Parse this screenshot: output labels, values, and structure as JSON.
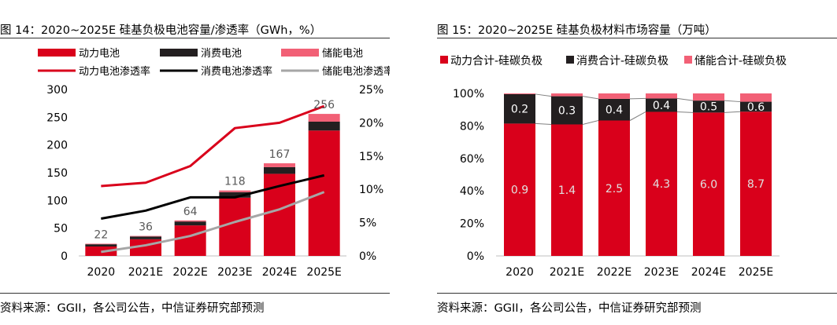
{
  "colors": {
    "power": "#d9001b",
    "consumer": "#231f20",
    "storage": "#f26076",
    "power_line": "#d9001b",
    "consumer_line": "#000000",
    "storage_line": "#a6a6a6",
    "connector": "#808080"
  },
  "left": {
    "title": "图 14：2020~2025E 硅基负极电池容量/渗透率（GWh，%）",
    "source": "资料来源：GGII，各公司公告，中信证券研究部预测"
  },
  "right": {
    "title": "图 15：2020~2025E 硅基负极材料市场容量（万吨）",
    "source": "资料来源：GGII，各公司公告，中信证券研究部预测"
  },
  "chart_data": [
    {
      "type": "bar",
      "stacked": true,
      "title": "2020~2025E 硅基负极电池容量/渗透率（GWh，%）",
      "categories": [
        "2020",
        "2021E",
        "2022E",
        "2023E",
        "2024E",
        "2025E"
      ],
      "ylim": [
        0,
        300
      ],
      "yticks": [
        "0",
        "50",
        "100",
        "150",
        "200",
        "250",
        "300"
      ],
      "ylim_right": [
        0,
        25
      ],
      "yticks_right": [
        "0%",
        "5%",
        "10%",
        "15%",
        "20%",
        "25%"
      ],
      "series": [
        {
          "name": "动力电池",
          "values": [
            17,
            30,
            55,
            105,
            148,
            226
          ]
        },
        {
          "name": "消费电池",
          "values": [
            4,
            5,
            7,
            10,
            12,
            16
          ]
        },
        {
          "name": "储能电池",
          "values": [
            1,
            1,
            2,
            3,
            7,
            14
          ]
        }
      ],
      "totals": [
        22,
        36,
        64,
        118,
        167,
        256
      ],
      "lines": [
        {
          "name": "动力电池渗透率",
          "values": [
            10.5,
            11.0,
            13.5,
            19.2,
            20.0,
            22.5
          ]
        },
        {
          "name": "消费电池渗透率",
          "values": [
            5.6,
            6.8,
            8.8,
            8.8,
            10.5,
            12.1
          ]
        },
        {
          "name": "储能电池渗透率",
          "values": [
            0.6,
            1.6,
            3.0,
            5.1,
            7.0,
            9.6
          ]
        }
      ],
      "legend_position": "top"
    },
    {
      "type": "bar",
      "stacked": true,
      "percent": true,
      "title": "2020~2025E 硅基负极材料市场容量（万吨）",
      "categories": [
        "2020",
        "2021E",
        "2022E",
        "2023E",
        "2024E",
        "2025E"
      ],
      "yticks": [
        "0%",
        "20%",
        "40%",
        "60%",
        "80%",
        "100%"
      ],
      "series": [
        {
          "name": "动力合计-硅碳负极",
          "values": [
            0.9,
            1.4,
            2.5,
            4.3,
            6.0,
            8.7
          ],
          "labels": [
            "0.9",
            "1.4",
            "2.5",
            "4.3",
            "6.0",
            "8.7"
          ]
        },
        {
          "name": "消费合计-硅碳负极",
          "values": [
            0.2,
            0.3,
            0.4,
            0.4,
            0.5,
            0.6
          ],
          "labels": [
            "0.2",
            "0.3",
            "0.4",
            "0.4",
            "0.5",
            "0.6"
          ]
        },
        {
          "name": "储能合计-硅碳负极",
          "values": [
            0.005,
            0.03,
            0.1,
            0.15,
            0.3,
            0.5
          ]
        }
      ],
      "legend_position": "top"
    }
  ]
}
